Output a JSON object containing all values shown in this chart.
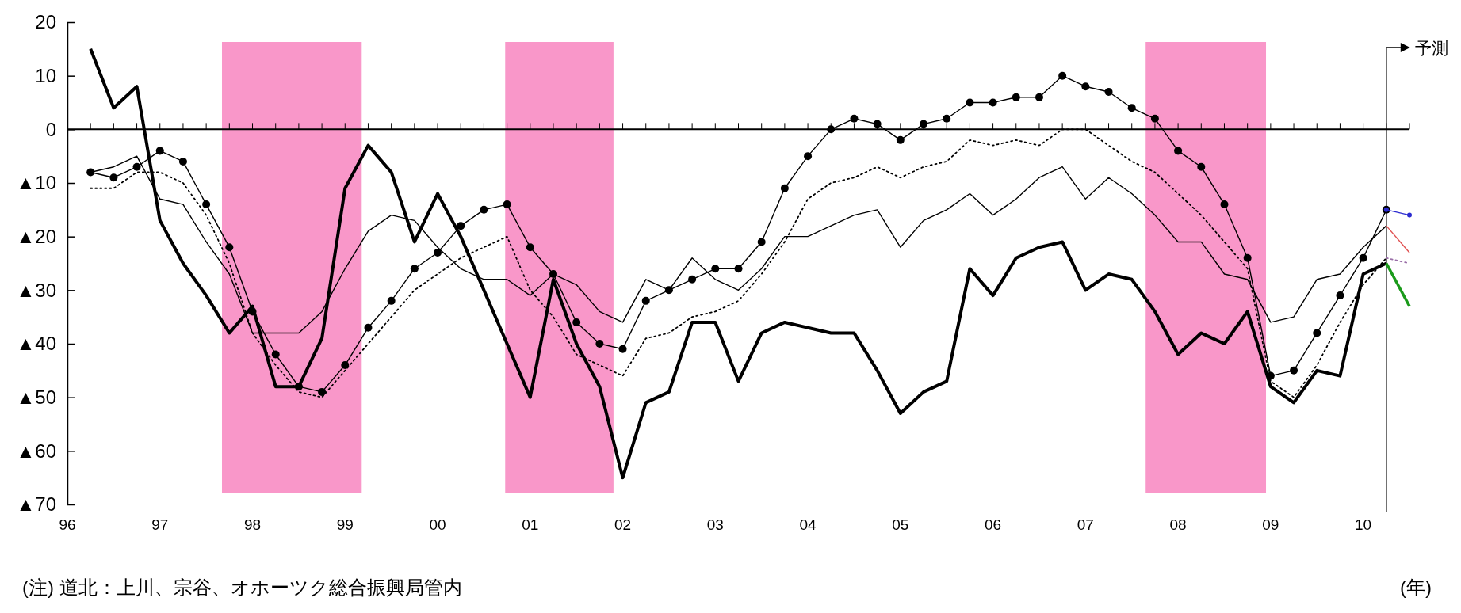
{
  "chart_data": {
    "type": "line",
    "xlabel": "(年)",
    "x": [
      1996.25,
      1996.5,
      1996.75,
      1997,
      1997.25,
      1997.5,
      1997.75,
      1998,
      1998.25,
      1998.5,
      1998.75,
      1999,
      1999.25,
      1999.5,
      1999.75,
      2000,
      2000.25,
      2000.5,
      2000.75,
      2001,
      2001.25,
      2001.5,
      2001.75,
      2002,
      2002.25,
      2002.5,
      2002.75,
      2003,
      2003.25,
      2003.5,
      2003.75,
      2004,
      2004.25,
      2004.5,
      2004.75,
      2005,
      2005.25,
      2005.5,
      2005.75,
      2006,
      2006.25,
      2006.5,
      2006.75,
      2007,
      2007.25,
      2007.5,
      2007.75,
      2008,
      2008.25,
      2008.5,
      2008.75,
      2009,
      2009.25,
      2009.5,
      2009.75,
      2010,
      2010.25,
      2010.5
    ],
    "series": [
      {
        "color": "#000000",
        "values": [
          15,
          4,
          8,
          -17,
          -25,
          -31,
          -38,
          -33,
          -48,
          -48,
          -39,
          -11,
          -3,
          -8,
          -21,
          -12,
          -20,
          -30,
          -40,
          -50,
          -28,
          -40,
          -48,
          -65,
          -51,
          -49,
          -36,
          -36,
          -47,
          -38,
          -36,
          -37,
          -38,
          -38,
          -45,
          -53,
          -49,
          -47,
          -26,
          -31,
          -24,
          -22,
          -21,
          -30,
          -27,
          -28,
          -34,
          -42,
          -38,
          -40,
          -34,
          -48,
          -51,
          -45,
          -46,
          -27,
          -25,
          null
        ]
      },
      {
        "color": "#000000",
        "marker": "circle",
        "values": [
          -8,
          -9,
          -7,
          -4,
          -6,
          -14,
          -22,
          -34,
          -42,
          -48,
          -49,
          -44,
          -37,
          -32,
          -26,
          -23,
          -18,
          -15,
          -14,
          -22,
          -27,
          -36,
          -40,
          -41,
          -32,
          -30,
          -28,
          -26,
          -26,
          -21,
          -11,
          -5,
          0,
          2,
          1,
          -2,
          1,
          2,
          5,
          5,
          6,
          6,
          10,
          8,
          7,
          4,
          2,
          -4,
          -7,
          -14,
          -24,
          -46,
          -45,
          -38,
          -31,
          -24,
          -15,
          null
        ]
      },
      {
        "color": "#000000",
        "values": [
          -8,
          -7,
          -5,
          -13,
          -14,
          -21,
          -27,
          -38,
          -38,
          -38,
          -34,
          -26,
          -19,
          -16,
          -17,
          -22,
          -26,
          -28,
          -28,
          -31,
          -27,
          -29,
          -34,
          -36,
          -28,
          -30,
          -24,
          -28,
          -30,
          -26,
          -20,
          -20,
          -18,
          -16,
          -15,
          -22,
          -17,
          -15,
          -12,
          -16,
          -13,
          -9,
          -7,
          -13,
          -9,
          -12,
          -16,
          -21,
          -21,
          -27,
          -28,
          -36,
          -35,
          -28,
          -27,
          -22,
          -18,
          null
        ]
      },
      {
        "color": "#000000",
        "line_style": "dotted",
        "values": [
          -11,
          -11,
          -8,
          -8,
          -10,
          -16,
          -25,
          -38,
          -44,
          -49,
          -50,
          -45,
          -40,
          -35,
          -30,
          -27,
          -24,
          -22,
          -20,
          -30,
          -35,
          -42,
          -44,
          -46,
          -39,
          -38,
          -35,
          -34,
          -32,
          -27,
          -21,
          -13,
          -10,
          -9,
          -7,
          -9,
          -7,
          -6,
          -2,
          -3,
          -2,
          -3,
          0,
          0,
          -3,
          -6,
          -8,
          -12,
          -16,
          -21,
          -26,
          -47,
          -50,
          -44,
          -36,
          -29,
          -24,
          null
        ]
      },
      {
        "color": "#1a9a1a",
        "values": [
          null,
          null,
          null,
          null,
          null,
          null,
          null,
          null,
          null,
          null,
          null,
          null,
          null,
          null,
          null,
          null,
          null,
          null,
          null,
          null,
          null,
          null,
          null,
          null,
          null,
          null,
          null,
          null,
          null,
          null,
          null,
          null,
          null,
          null,
          null,
          null,
          null,
          null,
          null,
          null,
          null,
          null,
          null,
          null,
          null,
          null,
          null,
          null,
          null,
          null,
          null,
          null,
          null,
          null,
          null,
          null,
          -25,
          -33
        ]
      },
      {
        "color": "#2b2bd0",
        "marker": "circle",
        "values": [
          null,
          null,
          null,
          null,
          null,
          null,
          null,
          null,
          null,
          null,
          null,
          null,
          null,
          null,
          null,
          null,
          null,
          null,
          null,
          null,
          null,
          null,
          null,
          null,
          null,
          null,
          null,
          null,
          null,
          null,
          null,
          null,
          null,
          null,
          null,
          null,
          null,
          null,
          null,
          null,
          null,
          null,
          null,
          null,
          null,
          null,
          null,
          null,
          null,
          null,
          null,
          null,
          null,
          null,
          null,
          null,
          -15,
          -16
        ]
      },
      {
        "color": "#e05050",
        "values": [
          null,
          null,
          null,
          null,
          null,
          null,
          null,
          null,
          null,
          null,
          null,
          null,
          null,
          null,
          null,
          null,
          null,
          null,
          null,
          null,
          null,
          null,
          null,
          null,
          null,
          null,
          null,
          null,
          null,
          null,
          null,
          null,
          null,
          null,
          null,
          null,
          null,
          null,
          null,
          null,
          null,
          null,
          null,
          null,
          null,
          null,
          null,
          null,
          null,
          null,
          null,
          null,
          null,
          null,
          null,
          null,
          -18,
          -23
        ]
      },
      {
        "color": "#9a6fa8",
        "line_style": "dotted",
        "values": [
          null,
          null,
          null,
          null,
          null,
          null,
          null,
          null,
          null,
          null,
          null,
          null,
          null,
          null,
          null,
          null,
          null,
          null,
          null,
          null,
          null,
          null,
          null,
          null,
          null,
          null,
          null,
          null,
          null,
          null,
          null,
          null,
          null,
          null,
          null,
          null,
          null,
          null,
          null,
          null,
          null,
          null,
          null,
          null,
          null,
          null,
          null,
          null,
          null,
          null,
          null,
          null,
          null,
          null,
          null,
          null,
          -24,
          -25
        ]
      }
    ],
    "xlim": [
      1996,
      2010.5
    ],
    "xticks": [
      {
        "value": 1996,
        "label": "96"
      },
      {
        "value": 1996.25,
        "label": null
      },
      {
        "value": 1996.5,
        "label": null
      },
      {
        "value": 1996.75,
        "label": null
      },
      {
        "value": 1997,
        "label": "97"
      },
      {
        "value": 1997.25,
        "label": null
      },
      {
        "value": 1997.5,
        "label": null
      },
      {
        "value": 1997.75,
        "label": null
      },
      {
        "value": 1998,
        "label": "98"
      },
      {
        "value": 1998.25,
        "label": null
      },
      {
        "value": 1998.5,
        "label": null
      },
      {
        "value": 1998.75,
        "label": null
      },
      {
        "value": 1999,
        "label": "99"
      },
      {
        "value": 1999.25,
        "label": null
      },
      {
        "value": 1999.5,
        "label": null
      },
      {
        "value": 1999.75,
        "label": null
      },
      {
        "value": 2000,
        "label": "00"
      },
      {
        "value": 2000.25,
        "label": null
      },
      {
        "value": 2000.5,
        "label": null
      },
      {
        "value": 2000.75,
        "label": null
      },
      {
        "value": 2001,
        "label": "01"
      },
      {
        "value": 2001.25,
        "label": null
      },
      {
        "value": 2001.5,
        "label": null
      },
      {
        "value": 2001.75,
        "label": null
      },
      {
        "value": 2002,
        "label": "02"
      },
      {
        "value": 2002.25,
        "label": null
      },
      {
        "value": 2002.5,
        "label": null
      },
      {
        "value": 2002.75,
        "label": null
      },
      {
        "value": 2003,
        "label": "03"
      },
      {
        "value": 2003.25,
        "label": null
      },
      {
        "value": 2003.5,
        "label": null
      },
      {
        "value": 2003.75,
        "label": null
      },
      {
        "value": 2004,
        "label": "04"
      },
      {
        "value": 2004.25,
        "label": null
      },
      {
        "value": 2004.5,
        "label": null
      },
      {
        "value": 2004.75,
        "label": null
      },
      {
        "value": 2005,
        "label": "05"
      },
      {
        "value": 2005.25,
        "label": null
      },
      {
        "value": 2005.5,
        "label": null
      },
      {
        "value": 2005.75,
        "label": null
      },
      {
        "value": 2006,
        "label": "06"
      },
      {
        "value": 2006.25,
        "label": null
      },
      {
        "value": 2006.5,
        "label": null
      },
      {
        "value": 2006.75,
        "label": null
      },
      {
        "value": 2007,
        "label": "07"
      },
      {
        "value": 2007.25,
        "label": null
      },
      {
        "value": 2007.5,
        "label": null
      },
      {
        "value": 2007.75,
        "label": null
      },
      {
        "value": 2008,
        "label": "08"
      },
      {
        "value": 2008.25,
        "label": null
      },
      {
        "value": 2008.5,
        "label": null
      },
      {
        "value": 2008.75,
        "label": null
      },
      {
        "value": 2009,
        "label": "09"
      },
      {
        "value": 2009.25,
        "label": null
      },
      {
        "value": 2009.5,
        "label": null
      },
      {
        "value": 2009.75,
        "label": null
      },
      {
        "value": 2010,
        "label": "10"
      },
      {
        "value": 2010.25,
        "label": null
      },
      {
        "value": 2010.5,
        "label": null
      }
    ],
    "ylim": [
      -70,
      20
    ],
    "yticks": [
      20,
      10,
      0,
      {
        "value": -10,
        "label": "▲10"
      },
      {
        "value": -20,
        "label": "▲20"
      },
      {
        "value": -30,
        "label": "▲30"
      },
      {
        "value": -40,
        "label": "▲40"
      },
      {
        "value": -50,
        "label": "▲50"
      },
      {
        "value": -60,
        "label": "▲60"
      },
      {
        "value": -70,
        "label": "▲70"
      }
    ],
    "bands": [
      {
        "axis": "x",
        "from": 1997.67,
        "to": 1999.18,
        "color": "#f997c9"
      },
      {
        "axis": "x",
        "from": 2000.73,
        "to": 2001.9,
        "color": "#f997c9"
      },
      {
        "axis": "x",
        "from": 2007.65,
        "to": 2008.95,
        "color": "#f997c9"
      }
    ],
    "ref_lines": [
      {
        "axis": "x",
        "value": 2010.25,
        "label": "予測"
      }
    ],
    "annotations": [
      "(注) 道北：上川、宗谷、オホーツク総合振興局管内"
    ]
  }
}
